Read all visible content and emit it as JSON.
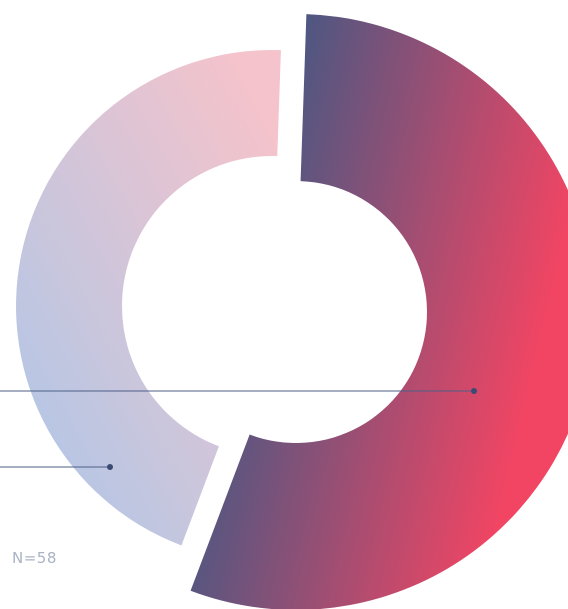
{
  "chart_data": {
    "type": "pie",
    "variant": "donut",
    "slices": [
      {
        "value": 55.2
      },
      {
        "value": 44.8
      }
    ],
    "colors": {
      "large_slice": [
        "#3f5380",
        "#f23f5e"
      ],
      "small_slice": [
        "#b2c7e6",
        "#f4c3cb"
      ]
    },
    "annotation": "N=58"
  }
}
